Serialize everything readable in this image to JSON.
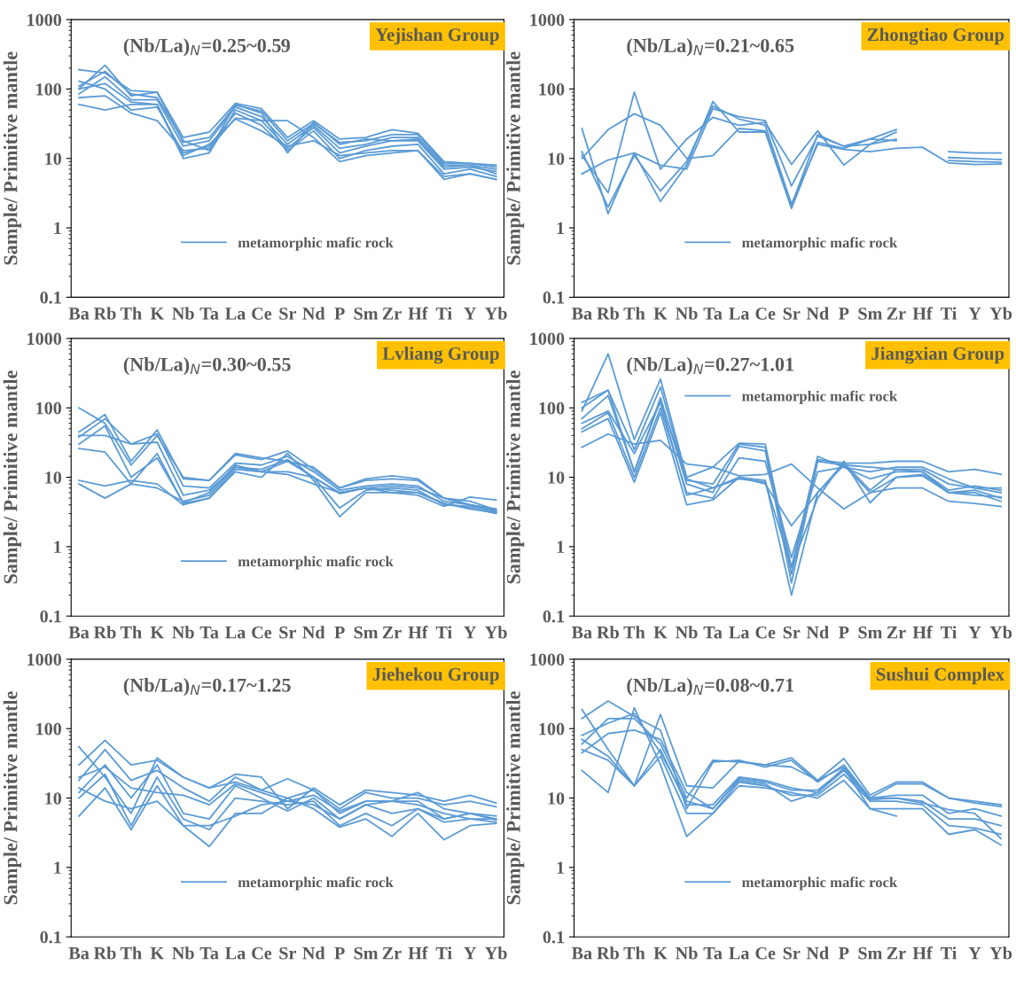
{
  "chart_data": [
    {
      "type": "line",
      "title": "Yejishan Group",
      "ylabel": "Sample/ Primitive mantle",
      "annotations": [
        "(Nb/La)$_{N}$=0.25~0.59"
      ],
      "categories": [
        "Ba",
        "Rb",
        "Th",
        "K",
        "Nb",
        "Ta",
        "La",
        "Ce",
        "Sr",
        "Nd",
        "P",
        "Sm",
        "Zr",
        "Hf",
        "Ti",
        "Y",
        "Yb"
      ],
      "ylim": [
        0.1,
        1000
      ],
      "yticks": [
        0.1,
        1,
        10,
        100,
        1000
      ],
      "log": true,
      "grid": false,
      "legend": "bottom",
      "marker": "none",
      "line_style": "solid",
      "series": [
        {
          "name": "metamorphic mafic rock",
          "color": "#5b9bd5",
          "values": [
            190,
            170,
            95,
            90,
            20,
            24,
            62,
            52,
            20,
            35,
            19,
            20,
            26,
            23,
            9,
            8.5,
            8
          ]
        },
        {
          "color": "#5b9bd5",
          "values": [
            100,
            220,
            80,
            90,
            17,
            20,
            58,
            48,
            18,
            32,
            17,
            18,
            22,
            22,
            8.5,
            8.5,
            7.5
          ]
        },
        {
          "color": "#5b9bd5",
          "values": [
            85,
            150,
            70,
            70,
            15,
            18,
            55,
            40,
            16,
            30,
            14,
            16,
            20,
            20,
            8,
            8,
            7
          ]
        },
        {
          "color": "#5b9bd5",
          "values": [
            60,
            50,
            60,
            60,
            10,
            12,
            50,
            35,
            14,
            28,
            12,
            15,
            18,
            18,
            7,
            7.5,
            6.5
          ]
        },
        {
          "color": "#5b9bd5",
          "values": [
            130,
            100,
            50,
            55,
            12,
            15,
            45,
            30,
            13,
            25,
            10,
            13,
            15,
            16,
            6,
            7,
            5.5
          ]
        },
        {
          "color": "#5b9bd5",
          "values": [
            75,
            80,
            45,
            35,
            13,
            14,
            38,
            35,
            35,
            20,
            9,
            11,
            12,
            13,
            5,
            6,
            5
          ]
        },
        {
          "color": "#5b9bd5",
          "values": [
            100,
            120,
            65,
            60,
            11,
            16,
            37,
            25,
            15,
            18,
            11,
            12,
            13,
            13,
            5.5,
            6,
            5
          ]
        },
        {
          "color": "#5b9bd5",
          "values": [
            110,
            180,
            85,
            75,
            18,
            13,
            60,
            45,
            12,
            33,
            16,
            19,
            18,
            19,
            7.5,
            8,
            6
          ]
        }
      ]
    },
    {
      "type": "line",
      "title": "Zhongtiao Group",
      "ylabel": "Sample/ Primitive mantle",
      "annotations": [
        "(Nb/La)$_{N}$=0.21~0.65"
      ],
      "categories": [
        "Ba",
        "Rb",
        "Th",
        "K",
        "Nb",
        "Ta",
        "La",
        "Ce",
        "Sr",
        "Nd",
        "P",
        "Sm",
        "Zr",
        "Hf",
        "Ti",
        "Y",
        "Yb"
      ],
      "ylim": [
        0.1,
        1000
      ],
      "yticks": [
        0.1,
        1,
        10,
        100,
        1000
      ],
      "log": true,
      "grid": false,
      "legend": "bottom",
      "marker": "none",
      "line_style": "solid",
      "series": [
        {
          "name": "metamorphic mafic rock",
          "color": "#5b9bd5",
          "values": [
            12.5,
            2,
            11,
            3.4,
            9,
            57,
            37,
            30,
            2.2,
            16,
            13.5,
            12.5,
            14,
            14.5,
            8.6,
            8.2,
            8.3
          ]
        },
        {
          "color": "#5b9bd5",
          "values": [
            27,
            1.6,
            12,
            2.4,
            8,
            66,
            24,
            24,
            1.9,
            17,
            14,
            19,
            18,
            null,
            null,
            null,
            null
          ]
        },
        {
          "color": "#5b9bd5",
          "values": [
            11,
            3.2,
            90,
            7,
            19,
            39,
            30,
            33,
            8.2,
            25,
            8,
            16,
            19,
            null,
            null,
            null,
            null
          ]
        },
        {
          "color": "#5b9bd5",
          "values": [
            10,
            26,
            44,
            30,
            10,
            11,
            27,
            25,
            2.1,
            22,
            15,
            19,
            26,
            null,
            null,
            null,
            null
          ]
        },
        {
          "color": "#5b9bd5",
          "values": [
            6,
            9.5,
            12,
            8,
            7,
            52,
            40,
            35,
            4,
            21,
            15,
            16,
            24,
            null,
            null,
            null,
            null
          ]
        },
        {
          "color": "#5b9bd5",
          "values": [
            null,
            null,
            null,
            null,
            null,
            null,
            null,
            null,
            null,
            null,
            null,
            null,
            null,
            null,
            12.5,
            12,
            12
          ]
        },
        {
          "color": "#5b9bd5",
          "values": [
            null,
            null,
            null,
            null,
            null,
            null,
            null,
            null,
            null,
            null,
            null,
            null,
            null,
            null,
            10.3,
            10,
            9.6
          ]
        },
        {
          "color": "#5b9bd5",
          "values": [
            null,
            null,
            null,
            null,
            null,
            null,
            null,
            null,
            null,
            null,
            null,
            null,
            null,
            null,
            9.3,
            9,
            8.8
          ]
        }
      ]
    },
    {
      "type": "line",
      "title": "Lvliang Group",
      "ylabel": "Sample/ Primitive mantle",
      "annotations": [
        "(Nb/La)$_{N}$=0.30~0.55"
      ],
      "categories": [
        "Ba",
        "Rb",
        "Th",
        "K",
        "Nb",
        "Ta",
        "La",
        "Ce",
        "Sr",
        "Nd",
        "P",
        "Sm",
        "Zr",
        "Hf",
        "Ti",
        "Y",
        "Yb"
      ],
      "ylim": [
        0.1,
        1000
      ],
      "yticks": [
        0.1,
        1,
        10,
        100,
        1000
      ],
      "log": true,
      "grid": false,
      "legend": "bottom",
      "marker": "none",
      "line_style": "solid",
      "series": [
        {
          "name": "metamorphic mafic rock",
          "color": "#5b9bd5",
          "values": [
            100,
            60,
            15,
            40,
            10,
            9,
            22,
            19,
            17,
            14,
            7,
            9.5,
            10.5,
            9.5,
            5,
            4,
            3.2
          ]
        },
        {
          "color": "#5b9bd5",
          "values": [
            45,
            80,
            17,
            48,
            9.5,
            9,
            21,
            18,
            24,
            13,
            7,
            9,
            9.5,
            9,
            5,
            4,
            3.5
          ]
        },
        {
          "color": "#5b9bd5",
          "values": [
            38,
            70,
            30,
            42,
            7.5,
            7,
            16,
            15,
            20,
            12,
            6.5,
            7.5,
            8,
            7.5,
            4.5,
            4,
            3.3
          ]
        },
        {
          "color": "#5b9bd5",
          "values": [
            40,
            40,
            30,
            32,
            5.5,
            6.5,
            14,
            13,
            18,
            10,
            3.6,
            6.5,
            7,
            6.5,
            4,
            3.8,
            3.2
          ]
        },
        {
          "color": "#5b9bd5",
          "values": [
            26,
            23,
            8,
            22,
            4.2,
            5,
            12,
            10,
            22,
            9,
            2.7,
            6,
            6,
            5.5,
            3.8,
            5.2,
            4.7
          ]
        },
        {
          "color": "#5b9bd5",
          "values": [
            9,
            7.5,
            9,
            8,
            4,
            5,
            13,
            12,
            11,
            8,
            6,
            7,
            6,
            6,
            4.2,
            3.6,
            3
          ]
        },
        {
          "color": "#5b9bd5",
          "values": [
            8,
            5,
            8,
            7,
            4.5,
            5.5,
            14,
            12,
            12,
            10,
            5.8,
            7,
            6.5,
            6,
            4.2,
            3.5,
            3.1
          ]
        },
        {
          "color": "#5b9bd5",
          "values": [
            30,
            55,
            10,
            19,
            4.3,
            6,
            15,
            12,
            17,
            10,
            6,
            7,
            7.5,
            7,
            5,
            4.5,
            3.4
          ]
        }
      ]
    },
    {
      "type": "line",
      "title": "Jiangxian Group",
      "ylabel": "Sample/ Primitive mantle",
      "annotations": [
        "(Nb/La)$_{N}$=0.27~1.01"
      ],
      "categories": [
        "Ba",
        "Rb",
        "Th",
        "K",
        "Nb",
        "Ta",
        "La",
        "Ce",
        "Sr",
        "Nd",
        "P",
        "Sm",
        "Zr",
        "Hf",
        "Ti",
        "Y",
        "Yb"
      ],
      "ylim": [
        0.1,
        1000
      ],
      "yticks": [
        0.1,
        1,
        10,
        100,
        1000
      ],
      "log": true,
      "grid": false,
      "legend": "top",
      "marker": "none",
      "line_style": "solid",
      "series": [
        {
          "name": "metamorphic mafic rock",
          "color": "#5b9bd5",
          "values": [
            90,
            600,
            35,
            260,
            10,
            14,
            31,
            30,
            0.5,
            20,
            14,
            12,
            14,
            14,
            9.5,
            7,
            6
          ]
        },
        {
          "color": "#5b9bd5",
          "values": [
            120,
            180,
            25,
            200,
            9,
            8,
            30,
            27,
            0.4,
            18,
            16,
            16,
            17,
            17,
            12,
            13,
            11
          ]
        },
        {
          "color": "#5b9bd5",
          "values": [
            70,
            150,
            12,
            140,
            8,
            6,
            28,
            24,
            0.3,
            17,
            15,
            14,
            13,
            13,
            8,
            7,
            7
          ]
        },
        {
          "color": "#5b9bd5",
          "values": [
            50,
            85,
            10,
            100,
            6,
            5,
            19,
            17,
            0.7,
            12,
            14,
            9.5,
            12,
            12,
            6,
            6.5,
            5
          ]
        },
        {
          "color": "#5b9bd5",
          "values": [
            45,
            70,
            8.5,
            85,
            4,
            4.7,
            10,
            9,
            0.2,
            6,
            15,
            6,
            10,
            11,
            6,
            6,
            4.5
          ]
        },
        {
          "color": "#5b9bd5",
          "values": [
            27,
            42,
            30,
            34,
            15.5,
            14,
            10.5,
            11,
            15.5,
            7,
            3.5,
            6,
            7,
            7,
            4.5,
            4.2,
            3.8
          ]
        },
        {
          "color": "#5b9bd5",
          "values": [
            60,
            90,
            22,
            120,
            5.5,
            7,
            9.5,
            8.5,
            0.5,
            5,
            17,
            4.3,
            10,
            10.5,
            6,
            5.5,
            5.2
          ]
        },
        {
          "color": "#5b9bd5",
          "values": [
            100,
            180,
            12,
            130,
            9.5,
            7,
            10,
            8,
            2,
            6,
            16,
            6.5,
            13,
            12,
            6.5,
            7.5,
            6.5
          ]
        }
      ]
    },
    {
      "type": "line",
      "title": "Jiehekou Group",
      "ylabel": "Sample/ Primitive mantle",
      "annotations": [
        "(Nb/La)$_{N}$=0.17~1.25"
      ],
      "categories": [
        "Ba",
        "Rb",
        "Th",
        "K",
        "Nb",
        "Ta",
        "La",
        "Ce",
        "Sr",
        "Nd",
        "P",
        "Sm",
        "Zr",
        "Hf",
        "Ti",
        "Y",
        "Yb"
      ],
      "ylim": [
        0.1,
        1000
      ],
      "yticks": [
        0.1,
        1,
        10,
        100,
        1000
      ],
      "log": true,
      "grid": false,
      "legend": "bottom",
      "marker": "none",
      "line_style": "solid",
      "series": [
        {
          "name": "metamorphic mafic rock",
          "color": "#5b9bd5",
          "values": [
            55,
            20,
            6,
            38,
            20,
            14,
            22,
            20,
            7,
            14,
            8,
            13,
            12,
            11,
            9,
            11,
            8.5
          ]
        },
        {
          "color": "#5b9bd5",
          "values": [
            30,
            68,
            30,
            35,
            20,
            14,
            17,
            13,
            19,
            13,
            7,
            12,
            10,
            10,
            8,
            9,
            7.5
          ]
        },
        {
          "color": "#5b9bd5",
          "values": [
            18,
            50,
            18,
            25,
            14,
            9,
            20,
            13,
            10,
            13,
            6,
            9,
            9,
            12,
            7,
            6,
            5.5
          ]
        },
        {
          "color": "#5b9bd5",
          "values": [
            12,
            30,
            10,
            30,
            6,
            5,
            15,
            10,
            6.5,
            10,
            5,
            8,
            9,
            9,
            5,
            6,
            5
          ]
        },
        {
          "color": "#5b9bd5",
          "values": [
            10,
            22,
            4,
            20,
            5,
            3.5,
            10,
            9,
            8,
            9,
            4,
            6,
            4,
            7,
            4.5,
            5,
            5
          ]
        },
        {
          "color": "#5b9bd5",
          "values": [
            5.5,
            14,
            3.5,
            15,
            4,
            2,
            6,
            6,
            10,
            7,
            3.8,
            5,
            2.8,
            6,
            2.5,
            4,
            4.3
          ]
        },
        {
          "color": "#5b9bd5",
          "values": [
            20,
            28,
            14,
            12,
            11,
            8,
            16,
            12,
            9,
            8,
            5,
            8,
            6,
            7,
            5,
            6,
            4.8
          ]
        },
        {
          "color": "#5b9bd5",
          "values": [
            14,
            9,
            7,
            9,
            4,
            4,
            5.5,
            8,
            9,
            11,
            6.5,
            9,
            9,
            8,
            6,
            5,
            4.5
          ]
        }
      ]
    },
    {
      "type": "line",
      "title": "Sushui Complex",
      "ylabel": "Sample/ Primitive mantle",
      "annotations": [
        "(Nb/La)$_{N}$=0.08~0.71"
      ],
      "categories": [
        "Ba",
        "Rb",
        "Th",
        "K",
        "Nb",
        "Ta",
        "La",
        "Ce",
        "Sr",
        "Nd",
        "P",
        "Sm",
        "Zr",
        "Hf",
        "Ti",
        "Y",
        "Yb"
      ],
      "ylim": [
        0.1,
        1000
      ],
      "yticks": [
        0.1,
        1,
        10,
        100,
        1000
      ],
      "log": true,
      "grid": false,
      "legend": "bottom",
      "marker": "none",
      "line_style": "solid",
      "series": [
        {
          "name": "metamorphic mafic rock",
          "color": "#5b9bd5",
          "values": [
            190,
            50,
            15,
            160,
            15,
            14,
            34,
            30,
            38,
            18,
            37,
            11,
            17,
            17,
            10,
            9,
            8
          ]
        },
        {
          "color": "#5b9bd5",
          "values": [
            140,
            250,
            150,
            95,
            7,
            33,
            35,
            28,
            35,
            17,
            30,
            10,
            16,
            16,
            10,
            8.5,
            7.5
          ]
        },
        {
          "color": "#5b9bd5",
          "values": [
            60,
            140,
            140,
            60,
            10,
            35,
            33,
            30,
            28,
            18,
            28,
            10,
            11,
            11,
            6,
            7,
            5.5
          ]
        },
        {
          "color": "#5b9bd5",
          "values": [
            70,
            40,
            15,
            50,
            8,
            8,
            20,
            18,
            14,
            12,
            25,
            9.5,
            10,
            9,
            5,
            5,
            4
          ]
        },
        {
          "color": "#5b9bd5",
          "values": [
            50,
            35,
            15,
            40,
            6,
            6,
            17,
            15,
            11,
            11,
            22,
            9,
            9,
            8,
            4,
            3.7,
            3
          ]
        },
        {
          "color": "#5b9bd5",
          "values": [
            25,
            12,
            200,
            30,
            2.8,
            6,
            15,
            14,
            12,
            10,
            18,
            7,
            7,
            7,
            3,
            3.5,
            2.1
          ]
        },
        {
          "color": "#5b9bd5",
          "values": [
            45,
            85,
            95,
            70,
            12,
            7,
            18,
            16,
            9,
            12,
            27,
            7,
            5.5,
            null,
            null,
            null,
            null
          ]
        },
        {
          "color": "#5b9bd5",
          "values": [
            80,
            120,
            165,
            45,
            9,
            7,
            19,
            17,
            13,
            13,
            26,
            10,
            10,
            8.5,
            6.8,
            6,
            2.6
          ]
        }
      ]
    }
  ]
}
